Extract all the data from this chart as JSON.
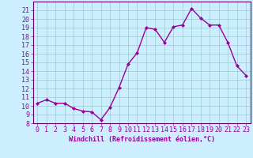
{
  "x": [
    0,
    1,
    2,
    3,
    4,
    5,
    6,
    7,
    8,
    9,
    10,
    11,
    12,
    13,
    14,
    15,
    16,
    17,
    18,
    19,
    20,
    21,
    22,
    23
  ],
  "y": [
    10.3,
    10.7,
    10.3,
    10.3,
    9.7,
    9.4,
    9.3,
    8.4,
    9.8,
    12.1,
    14.8,
    16.1,
    19.0,
    18.8,
    17.3,
    19.1,
    19.3,
    21.2,
    20.1,
    19.3,
    19.3,
    17.3,
    14.6,
    13.5
  ],
  "line_color": "#990099",
  "marker": "D",
  "markersize": 2.0,
  "linewidth": 1.0,
  "background_color": "#cceeff",
  "grid_color": "#99cccc",
  "xlabel": "Windchill (Refroidissement éolien,°C)",
  "xlim": [
    -0.5,
    23.5
  ],
  "ylim": [
    8,
    22
  ],
  "yticks": [
    8,
    9,
    10,
    11,
    12,
    13,
    14,
    15,
    16,
    17,
    18,
    19,
    20,
    21
  ],
  "xticks": [
    0,
    1,
    2,
    3,
    4,
    5,
    6,
    7,
    8,
    9,
    10,
    11,
    12,
    13,
    14,
    15,
    16,
    17,
    18,
    19,
    20,
    21,
    22,
    23
  ],
  "tick_color": "#990099",
  "label_color": "#990099",
  "axis_color": "#990099",
  "spine_color": "#660066",
  "tick_fontsize": 6.0,
  "xlabel_fontsize": 6.0
}
